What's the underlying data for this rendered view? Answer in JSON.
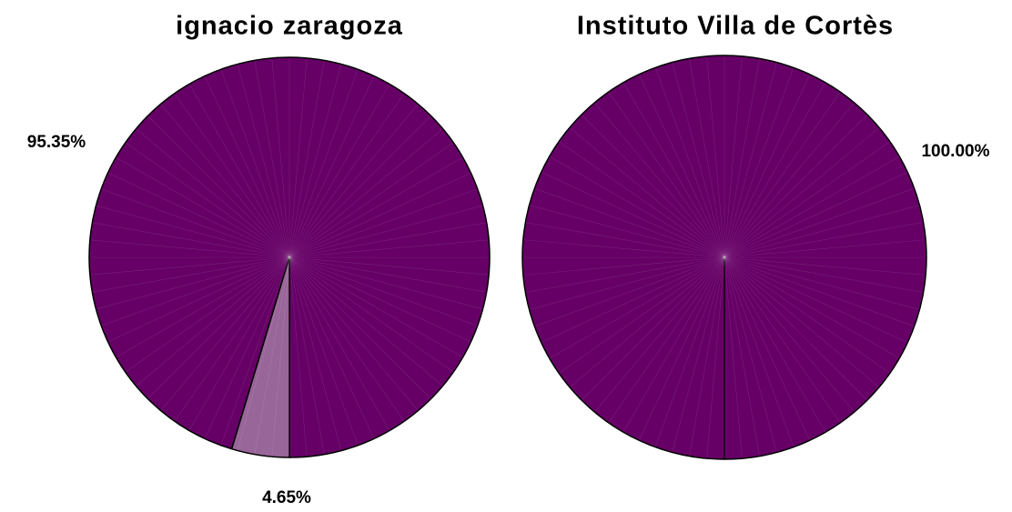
{
  "chart_data": [
    {
      "type": "pie",
      "title": "ignacio zaragoza",
      "values": [
        95.35,
        4.65
      ],
      "value_labels": [
        "95.35%",
        "4.65%"
      ],
      "colors": [
        "#660066",
        "#996699"
      ]
    },
    {
      "type": "pie",
      "title": "Instituto Villa de Cortès",
      "values": [
        100
      ],
      "value_labels": [
        "100.00%"
      ],
      "colors": [
        "#660066"
      ]
    }
  ]
}
